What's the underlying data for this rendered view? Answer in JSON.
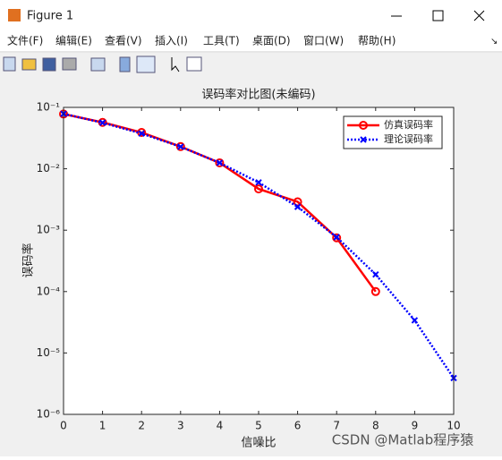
{
  "window": {
    "title": "Figure 1",
    "menus": [
      "文件(F)",
      "编辑(E)",
      "查看(V)",
      "插入(I)",
      "工具(T)",
      "桌面(D)",
      "窗口(W)",
      "帮助(H)"
    ]
  },
  "watermark": "CSDN @Matlab程序猿",
  "chart_data": {
    "type": "line",
    "title": "误码率对比图(未编码)",
    "x_label": "信噪比",
    "y_label": "误码率",
    "x": [
      0,
      1,
      2,
      3,
      4,
      5,
      6,
      7,
      8,
      9,
      10
    ],
    "series": [
      {
        "name": "仿真误码率",
        "color": "#ff0000",
        "values": [
          0.078,
          0.057,
          0.039,
          0.023,
          0.0125,
          0.0047,
          0.0029,
          0.00075,
          0.0001,
          null,
          null
        ]
      },
      {
        "name": "理论误码率",
        "color": "#0000ff",
        "values": [
          0.0786,
          0.0563,
          0.0375,
          0.0229,
          0.0125,
          0.006,
          0.0024,
          0.00077,
          0.00019,
          3.4e-05,
          3.9e-06
        ]
      }
    ],
    "xlim": [
      0,
      10
    ],
    "xticks": [
      0,
      1,
      2,
      3,
      4,
      5,
      6,
      7,
      8,
      9,
      10
    ],
    "ylim": [
      1e-06,
      0.1
    ],
    "log_y": true,
    "yticks": [
      {
        "value": 1e-06,
        "label": "10⁻⁶"
      },
      {
        "value": 1e-05,
        "label": "10⁻⁵"
      },
      {
        "value": 0.0001,
        "label": "10⁻⁴"
      },
      {
        "value": 0.001,
        "label": "10⁻³"
      },
      {
        "value": 0.01,
        "label": "10⁻²"
      },
      {
        "value": 0.1,
        "label": "10⁻¹"
      }
    ],
    "legend": "upper right"
  }
}
